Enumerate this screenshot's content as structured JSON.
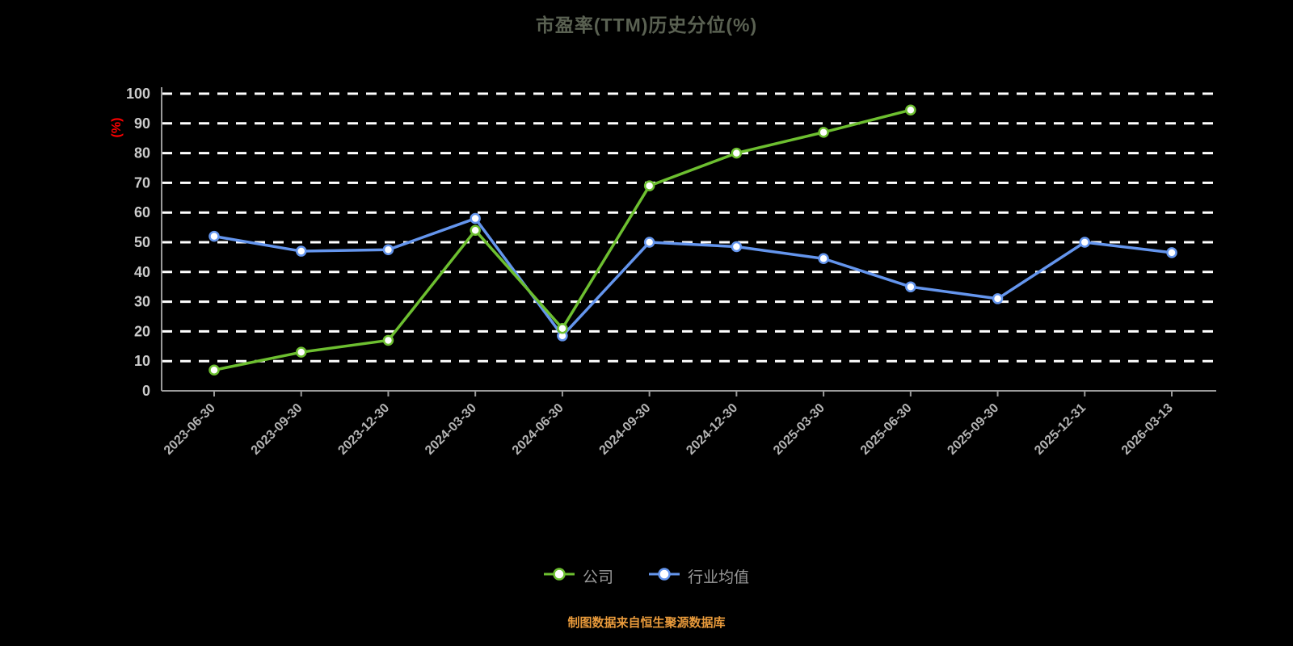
{
  "title": "市盈率(TTM)历史分位(%)",
  "y_axis_label": "(%)",
  "footer": "制图数据来自恒生聚源数据库",
  "legend": {
    "items": [
      {
        "label": "公司"
      },
      {
        "label": "行业均值"
      }
    ]
  },
  "colors": {
    "background": "#000000",
    "title": "#5a6152",
    "footer": "#e89a3b",
    "axis": "#9a9a9a",
    "grid": "#ffffff",
    "y_tick_text": "#cccccc",
    "x_tick_text": "#b3b3b3",
    "legend_text": "#999999",
    "y_unit_label": "#ff0000",
    "marker_fill": "#ffffff",
    "series": [
      "#6dbf30",
      "#6495ed"
    ]
  },
  "chart_data": {
    "type": "line",
    "title": "市盈率(TTM)历史分位(%)",
    "xlabel": "",
    "ylabel": "(%)",
    "ylim": [
      0,
      100
    ],
    "ytick_step": 10,
    "grid": true,
    "legend_position": "bottom",
    "categories": [
      "2023-06-30",
      "2023-09-30",
      "2023-12-30",
      "2024-03-30",
      "2024-06-30",
      "2024-09-30",
      "2024-12-30",
      "2025-03-30",
      "2025-06-30",
      "2025-09-30",
      "2025-12-31",
      "2026-03-13"
    ],
    "series": [
      {
        "name": "公司",
        "color": "#6dbf30",
        "values": [
          7,
          13,
          17,
          54,
          21,
          69,
          80,
          87,
          94.5,
          null,
          null,
          null
        ]
      },
      {
        "name": "行业均值",
        "color": "#6495ed",
        "values": [
          52,
          47,
          47.5,
          58,
          18.5,
          50,
          48.5,
          44.5,
          35,
          31,
          50,
          46.5
        ]
      }
    ]
  }
}
